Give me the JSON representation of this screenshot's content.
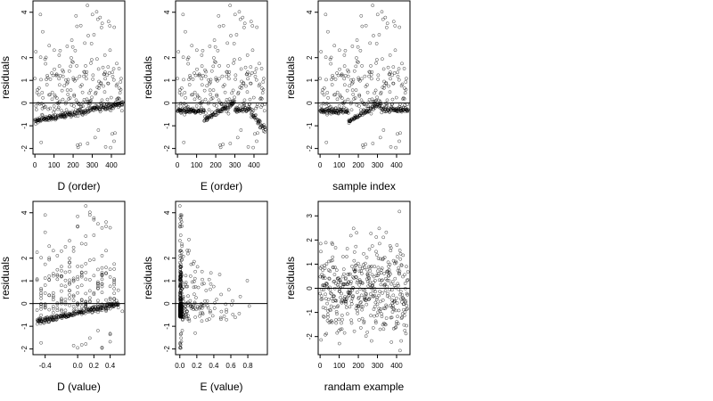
{
  "figure": {
    "background": "#ffffff",
    "point_color": "#000000",
    "line_color": "#000000"
  },
  "chart_data": [
    {
      "id": "d-order",
      "type": "scatter",
      "marker": "open-circle",
      "xlabel": "D (order)",
      "ylabel": "residuals",
      "xlim": [
        -10,
        470
      ],
      "ylim": [
        -2.25,
        4.5
      ],
      "xticks": [
        0,
        100,
        200,
        300,
        400
      ],
      "yticks": [
        -2,
        -1,
        0,
        1,
        2,
        4
      ],
      "hline": 0,
      "pattern": "order_d",
      "series": [
        {
          "x": [],
          "y": []
        }
      ]
    },
    {
      "id": "e-order",
      "type": "scatter",
      "marker": "open-circle",
      "xlabel": "E (order)",
      "ylabel": "residuals",
      "xlim": [
        -10,
        470
      ],
      "ylim": [
        -2.25,
        4.5
      ],
      "xticks": [
        0,
        100,
        200,
        300,
        400
      ],
      "yticks": [
        -2,
        -1,
        0,
        1,
        2,
        4
      ],
      "hline": 0,
      "pattern": "order_e",
      "series": [
        {
          "x": [],
          "y": []
        }
      ]
    },
    {
      "id": "sample-index",
      "type": "scatter",
      "marker": "open-circle",
      "xlabel": "sample index",
      "ylabel": "residuals",
      "xlim": [
        -10,
        470
      ],
      "ylim": [
        -2.25,
        4.5
      ],
      "xticks": [
        0,
        100,
        200,
        300,
        400
      ],
      "yticks": [
        -2,
        -1,
        0,
        1,
        2,
        4
      ],
      "hline": 0,
      "pattern": "sample_index",
      "series": [
        {
          "x": [],
          "y": []
        }
      ]
    },
    {
      "id": "d-value",
      "type": "scatter",
      "marker": "open-circle",
      "xlabel": "D (value)",
      "ylabel": "residuals",
      "xlim": [
        -0.55,
        0.58
      ],
      "ylim": [
        -2.25,
        4.5
      ],
      "xticks": [
        -0.4,
        0.0,
        0.2,
        0.4
      ],
      "xtick_labels": [
        "-0.4",
        "0.0",
        "0.2",
        "0.4"
      ],
      "yticks": [
        -2,
        -1,
        0,
        1,
        2,
        4
      ],
      "hline": 0,
      "pattern": "value_d",
      "series": [
        {
          "x": [],
          "y": []
        }
      ]
    },
    {
      "id": "e-value",
      "type": "scatter",
      "marker": "open-circle",
      "xlabel": "E (value)",
      "ylabel": "residuals",
      "xlim": [
        -0.05,
        1.03
      ],
      "ylim": [
        -2.25,
        4.5
      ],
      "xticks": [
        0.0,
        0.2,
        0.4,
        0.6,
        0.8
      ],
      "xtick_labels": [
        "0.0",
        "0.2",
        "0.4",
        "0.6",
        "0.8"
      ],
      "yticks": [
        -2,
        -1,
        0,
        1,
        2,
        4
      ],
      "hline": 0,
      "pattern": "value_e",
      "series": [
        {
          "x": [],
          "y": []
        }
      ]
    },
    {
      "id": "random-example",
      "type": "scatter",
      "marker": "open-circle",
      "xlabel": "randam example",
      "ylabel": "residuals",
      "xlim": [
        -10,
        470
      ],
      "ylim": [
        -2.75,
        3.6
      ],
      "xticks": [
        0,
        100,
        200,
        300,
        400
      ],
      "yticks": [
        -2,
        -1,
        0,
        1,
        2,
        3
      ],
      "hline": 0,
      "pattern": "random",
      "series": [
        {
          "x": [],
          "y": []
        }
      ]
    }
  ]
}
